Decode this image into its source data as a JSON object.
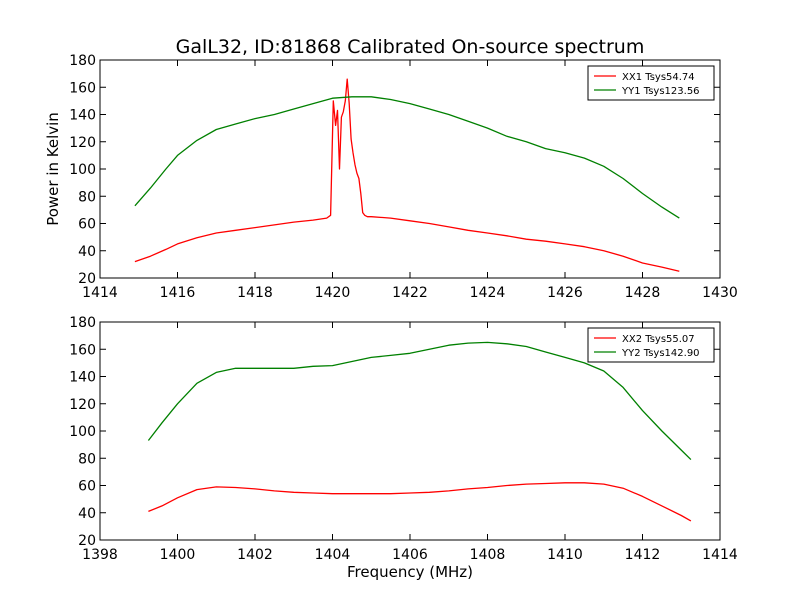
{
  "chart_data": [
    {
      "type": "line",
      "title": "GalL32, ID:81868 Calibrated On-source spectrum",
      "xlabel": "",
      "ylabel": "Power in Kelvin",
      "xlim": [
        1414,
        1430
      ],
      "ylim": [
        20,
        180
      ],
      "xticks": [
        "1414",
        "1416",
        "1418",
        "1420",
        "1422",
        "1424",
        "1426",
        "1428",
        "1430"
      ],
      "yticks": [
        "20",
        "40",
        "60",
        "80",
        "100",
        "120",
        "140",
        "160",
        "180"
      ],
      "grid": false,
      "legend_position": "top-right",
      "series": [
        {
          "name": "XX1 Tsys54.74",
          "color": "#ff0000",
          "x": [
            1414.9,
            1415.3,
            1415.7,
            1416.0,
            1416.5,
            1417.0,
            1417.5,
            1418.0,
            1418.5,
            1419.0,
            1419.5,
            1419.85,
            1419.95,
            1420.02,
            1420.08,
            1420.13,
            1420.18,
            1420.23,
            1420.28,
            1420.33,
            1420.38,
            1420.43,
            1420.48,
            1420.53,
            1420.58,
            1420.63,
            1420.68,
            1420.73,
            1420.78,
            1420.83,
            1420.9,
            1421.0,
            1421.5,
            1422.0,
            1422.5,
            1423.0,
            1423.5,
            1424.0,
            1424.5,
            1425.0,
            1425.5,
            1426.0,
            1426.5,
            1427.0,
            1427.5,
            1428.0,
            1428.5,
            1428.95
          ],
          "y": [
            32,
            36,
            41,
            45,
            49.5,
            53,
            55,
            57,
            59,
            61,
            62.5,
            64,
            66,
            150,
            132,
            143,
            100,
            138,
            142,
            150,
            166,
            148,
            122,
            112,
            103,
            97,
            93,
            82,
            68,
            66,
            65,
            65,
            64,
            62,
            60,
            57.5,
            55,
            53,
            51,
            48.5,
            47,
            45,
            43,
            40,
            36,
            31,
            28,
            25
          ]
        },
        {
          "name": "YY1 Tsys123.56",
          "color": "#008000",
          "x": [
            1414.9,
            1415.3,
            1415.7,
            1416.0,
            1416.5,
            1417.0,
            1417.5,
            1418.0,
            1418.5,
            1419.0,
            1419.5,
            1420.0,
            1420.5,
            1421.0,
            1421.5,
            1422.0,
            1422.5,
            1423.0,
            1423.5,
            1424.0,
            1424.5,
            1425.0,
            1425.5,
            1426.0,
            1426.5,
            1427.0,
            1427.5,
            1428.0,
            1428.5,
            1428.95
          ],
          "y": [
            73,
            86,
            100,
            110,
            121,
            129,
            133,
            137,
            140,
            144,
            148,
            152,
            153,
            153,
            151,
            148,
            144,
            140,
            135,
            130,
            124,
            120,
            115,
            112,
            108,
            102,
            93,
            82,
            72,
            64
          ]
        }
      ]
    },
    {
      "type": "line",
      "title": "",
      "xlabel": "Frequency (MHz)",
      "ylabel": "",
      "xlim": [
        1398,
        1414
      ],
      "ylim": [
        20,
        180
      ],
      "xticks": [
        "1398",
        "1400",
        "1402",
        "1404",
        "1406",
        "1408",
        "1410",
        "1412",
        "1414"
      ],
      "yticks": [
        "20",
        "40",
        "60",
        "80",
        "100",
        "120",
        "140",
        "160",
        "180"
      ],
      "grid": false,
      "legend_position": "top-right",
      "series": [
        {
          "name": "XX2 Tsys55.07",
          "color": "#ff0000",
          "x": [
            1399.25,
            1399.6,
            1400.0,
            1400.5,
            1401.0,
            1401.5,
            1402.0,
            1402.5,
            1403.0,
            1403.5,
            1404.0,
            1404.5,
            1405.0,
            1405.5,
            1406.0,
            1406.5,
            1407.0,
            1407.5,
            1408.0,
            1408.5,
            1409.0,
            1409.5,
            1410.0,
            1410.5,
            1411.0,
            1411.5,
            1412.0,
            1412.5,
            1413.0,
            1413.25
          ],
          "y": [
            41,
            45,
            51,
            57,
            59,
            58.5,
            57.5,
            56,
            55,
            54.5,
            54,
            54,
            54,
            54,
            54.5,
            55,
            56,
            57.5,
            58.5,
            60,
            61,
            61.5,
            62,
            62,
            61,
            58,
            52,
            45,
            38,
            34
          ]
        },
        {
          "name": "YY2 Tsys142.90",
          "color": "#008000",
          "x": [
            1399.25,
            1399.6,
            1400.0,
            1400.5,
            1401.0,
            1401.5,
            1402.0,
            1402.5,
            1403.0,
            1403.5,
            1404.0,
            1404.5,
            1405.0,
            1405.5,
            1406.0,
            1406.5,
            1407.0,
            1407.5,
            1408.0,
            1408.5,
            1409.0,
            1409.5,
            1410.0,
            1410.5,
            1411.0,
            1411.5,
            1412.0,
            1412.5,
            1413.0,
            1413.25
          ],
          "y": [
            93,
            106,
            120,
            135,
            143,
            146,
            146,
            146,
            146,
            147.5,
            148,
            151,
            154,
            155.5,
            157,
            160,
            163,
            164.5,
            165,
            164,
            162,
            158,
            154,
            150,
            144,
            132,
            115,
            100,
            86,
            79
          ]
        }
      ]
    }
  ]
}
